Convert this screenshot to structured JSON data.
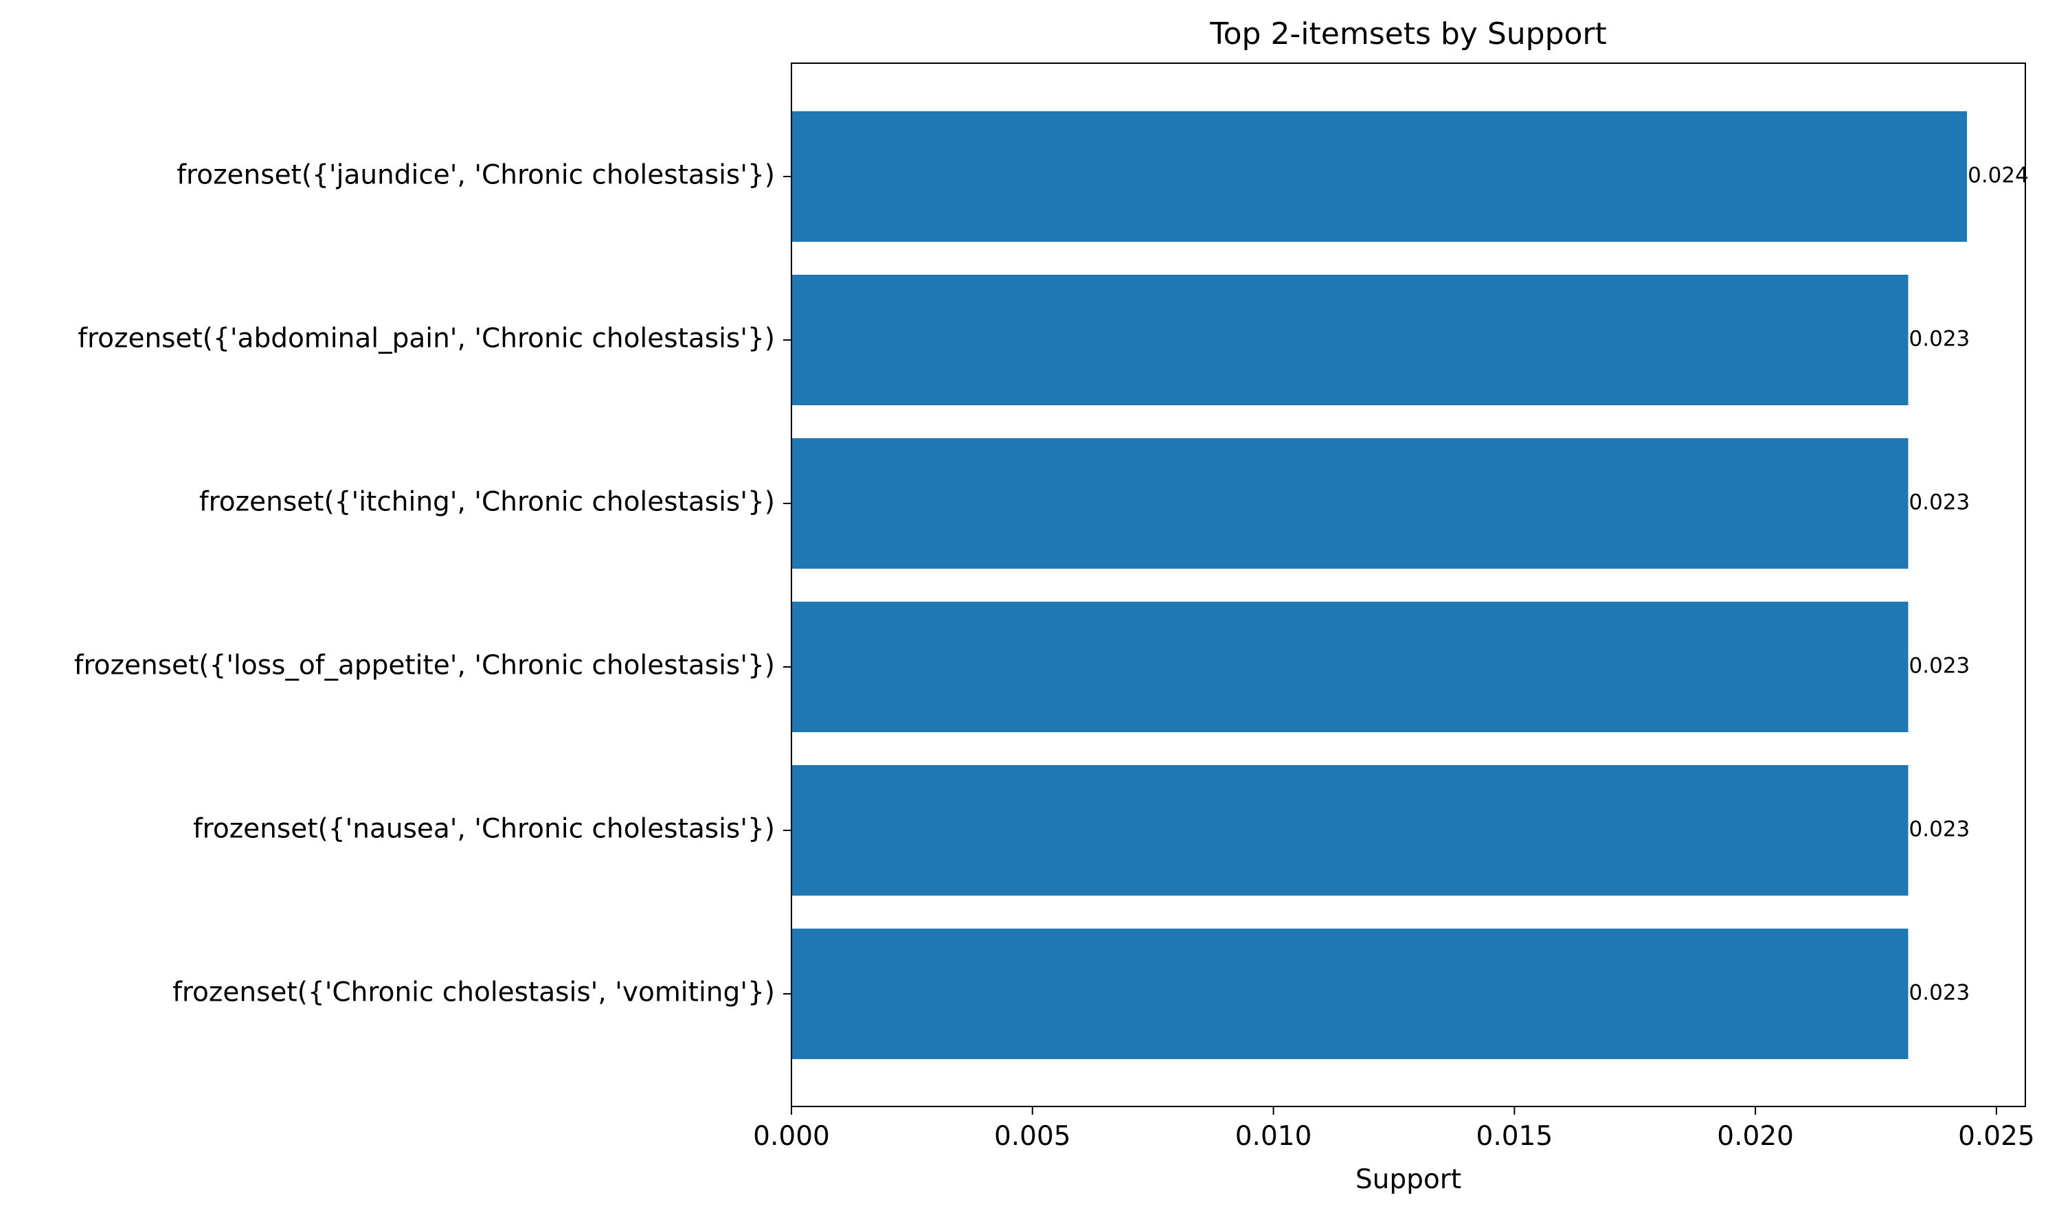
{
  "chart_data": {
    "type": "bar",
    "orientation": "horizontal",
    "title": "Top 2-itemsets by Support",
    "xlabel": "Support",
    "ylabel": "",
    "xlim": [
      0,
      0.0256
    ],
    "xticks": [
      0.0,
      0.005,
      0.01,
      0.015,
      0.02,
      0.025
    ],
    "xtick_labels": [
      "0.000",
      "0.005",
      "0.010",
      "0.015",
      "0.020",
      "0.025"
    ],
    "grid": false,
    "legend": "none",
    "categories": [
      "frozenset({'jaundice', 'Chronic cholestasis'})",
      "frozenset({'abdominal_pain', 'Chronic cholestasis'})",
      "frozenset({'itching', 'Chronic cholestasis'})",
      "frozenset({'loss_of_appetite', 'Chronic cholestasis'})",
      "frozenset({'nausea', 'Chronic cholestasis'})",
      "frozenset({'Chronic cholestasis', 'vomiting'})"
    ],
    "values": [
      0.02439,
      0.02317,
      0.02317,
      0.02317,
      0.02317,
      0.02317
    ],
    "value_labels": [
      "0.024",
      "0.023",
      "0.023",
      "0.023",
      "0.023",
      "0.023"
    ],
    "bar_color": "#1f77b4"
  }
}
